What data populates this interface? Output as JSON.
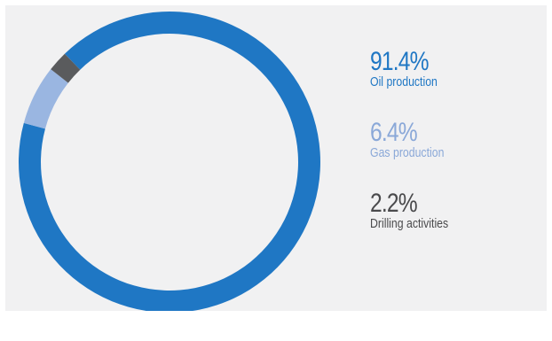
{
  "chart_data": {
    "type": "pie",
    "donut": true,
    "legend_placement": "right",
    "slices": [
      {
        "value": 91.4,
        "value_label": "91.4%",
        "label": "Oil production",
        "color": "#1f77c4",
        "label_color": "#1f77c4"
      },
      {
        "value": 6.4,
        "value_label": "6.4%",
        "label": "Gas production",
        "color": "#9ab6e1",
        "label_color": "#8aa8d8"
      },
      {
        "value": 2.2,
        "value_label": "2.2%",
        "label": "Drilling activities",
        "color": "#5a5b5d",
        "label_color": "#4a4a4c"
      }
    ]
  }
}
